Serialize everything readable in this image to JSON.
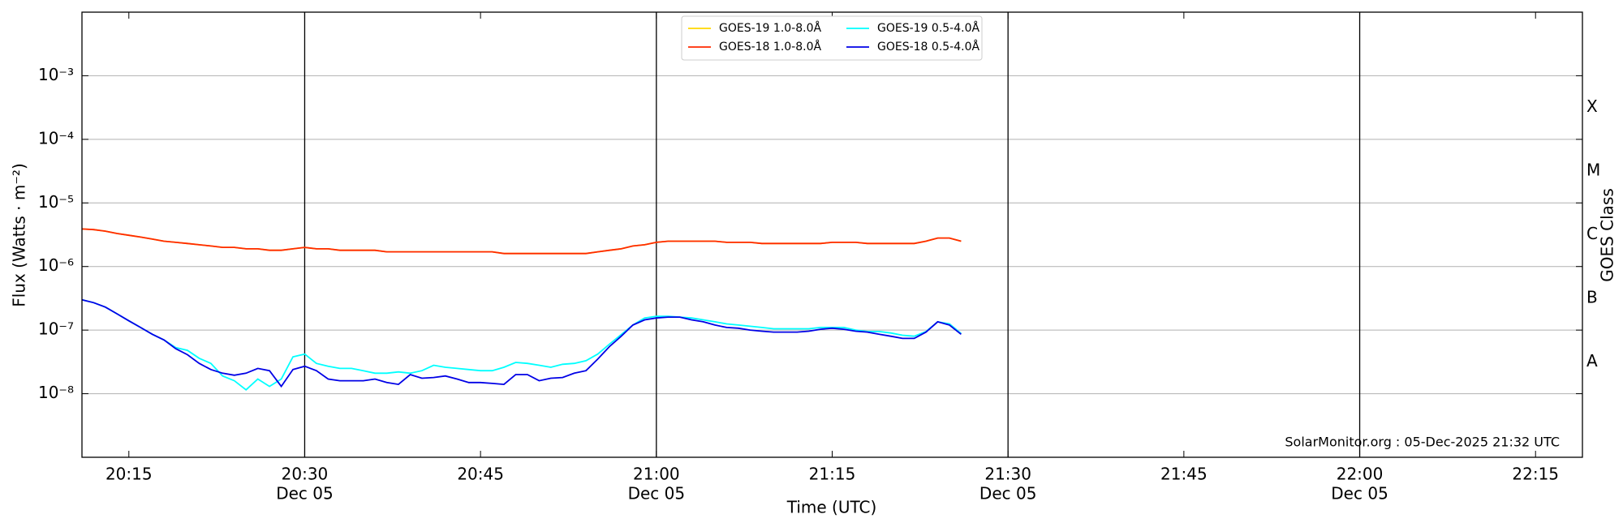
{
  "chart_data": {
    "type": "line",
    "y_label": "Flux (Watts · m⁻²)",
    "x_label": "Time (UTC)",
    "y2_label": "GOES Class",
    "annotation": "SolarMonitor.org : 05-Dec-2025 21:32 UTC",
    "log_y": true,
    "grid": true,
    "xgrid": true,
    "legend": "upper center",
    "xlim": [
      "20:11",
      "22:19"
    ],
    "ylim": [
      1e-09,
      0.01
    ],
    "y2lim": [
      1e-09,
      0.01
    ],
    "xticks": [
      {
        "value": "20:15",
        "label": [
          "20:15"
        ]
      },
      {
        "value": "20:30",
        "label": [
          "20:30",
          "Dec 05"
        ]
      },
      {
        "value": "20:45",
        "label": [
          "20:45"
        ]
      },
      {
        "value": "21:00",
        "label": [
          "21:00",
          "Dec 05"
        ]
      },
      {
        "value": "21:15",
        "label": [
          "21:15"
        ]
      },
      {
        "value": "21:30",
        "label": [
          "21:30",
          "Dec 05"
        ]
      },
      {
        "value": "21:45",
        "label": [
          "21:45"
        ]
      },
      {
        "value": "22:00",
        "label": [
          "22:00",
          "Dec 05"
        ]
      },
      {
        "value": "22:15",
        "label": [
          "22:15"
        ]
      }
    ],
    "yticks": [
      {
        "value": 1e-08,
        "label": "10⁻⁸"
      },
      {
        "value": 1e-07,
        "label": "10⁻⁷"
      },
      {
        "value": 1e-06,
        "label": "10⁻⁶"
      },
      {
        "value": 1e-05,
        "label": "10⁻⁵"
      },
      {
        "value": 0.0001,
        "label": "10⁻⁴"
      },
      {
        "value": 0.001,
        "label": "10⁻³"
      }
    ],
    "y2ticks": [
      {
        "value": 1e-08,
        "label": "A"
      },
      {
        "value": 1e-07,
        "label": "B"
      },
      {
        "value": 1e-06,
        "label": "C"
      },
      {
        "value": 1e-05,
        "label": "M"
      },
      {
        "value": 0.0001,
        "label": "X"
      }
    ],
    "x": [
      "20:11",
      "20:12",
      "20:13",
      "20:14",
      "20:15",
      "20:16",
      "20:17",
      "20:18",
      "20:19",
      "20:20",
      "20:21",
      "20:22",
      "20:23",
      "20:24",
      "20:25",
      "20:26",
      "20:27",
      "20:28",
      "20:29",
      "20:30",
      "20:31",
      "20:32",
      "20:33",
      "20:34",
      "20:35",
      "20:36",
      "20:37",
      "20:38",
      "20:39",
      "20:40",
      "20:41",
      "20:42",
      "20:43",
      "20:44",
      "20:45",
      "20:46",
      "20:47",
      "20:48",
      "20:49",
      "20:50",
      "20:51",
      "20:52",
      "20:53",
      "20:54",
      "20:55",
      "20:56",
      "20:57",
      "20:58",
      "20:59",
      "21:00",
      "21:01",
      "21:02",
      "21:03",
      "21:04",
      "21:05",
      "21:06",
      "21:07",
      "21:08",
      "21:09",
      "21:10",
      "21:11",
      "21:12",
      "21:13",
      "21:14",
      "21:15",
      "21:16",
      "21:17",
      "21:18",
      "21:19",
      "21:20",
      "21:21",
      "21:22",
      "21:23",
      "21:24",
      "21:25",
      "21:26"
    ],
    "series": [
      {
        "name": "GOES-19 1.0-8.0Å",
        "color": "#ffd700",
        "values": [
          3.9e-06,
          3.8e-06,
          3.6e-06,
          3.3e-06,
          3.1e-06,
          2.9e-06,
          2.7e-06,
          2.5e-06,
          2.4e-06,
          2.3e-06,
          2.2e-06,
          2.1e-06,
          2e-06,
          2e-06,
          1.9e-06,
          1.9e-06,
          1.8e-06,
          1.8e-06,
          1.9e-06,
          2e-06,
          1.9e-06,
          1.9e-06,
          1.8e-06,
          1.8e-06,
          1.8e-06,
          1.8e-06,
          1.7e-06,
          1.7e-06,
          1.7e-06,
          1.7e-06,
          1.7e-06,
          1.7e-06,
          1.7e-06,
          1.7e-06,
          1.7e-06,
          1.7e-06,
          1.6e-06,
          1.6e-06,
          1.6e-06,
          1.6e-06,
          1.6e-06,
          1.6e-06,
          1.6e-06,
          1.6e-06,
          1.7e-06,
          1.8e-06,
          1.9e-06,
          2.1e-06,
          2.2e-06,
          2.4e-06,
          2.5e-06,
          2.5e-06,
          2.5e-06,
          2.5e-06,
          2.5e-06,
          2.4e-06,
          2.4e-06,
          2.4e-06,
          2.3e-06,
          2.3e-06,
          2.3e-06,
          2.3e-06,
          2.3e-06,
          2.3e-06,
          2.4e-06,
          2.4e-06,
          2.4e-06,
          2.3e-06,
          2.3e-06,
          2.3e-06,
          2.3e-06,
          2.3e-06,
          2.5e-06,
          2.8e-06,
          2.8e-06,
          2.5e-06
        ]
      },
      {
        "name": "GOES-18 1.0-8.0Å",
        "color": "#ff2a00",
        "values": [
          3.9e-06,
          3.8e-06,
          3.6e-06,
          3.3e-06,
          3.1e-06,
          2.9e-06,
          2.7e-06,
          2.5e-06,
          2.4e-06,
          2.3e-06,
          2.2e-06,
          2.1e-06,
          2e-06,
          2e-06,
          1.9e-06,
          1.9e-06,
          1.8e-06,
          1.8e-06,
          1.9e-06,
          2e-06,
          1.9e-06,
          1.9e-06,
          1.8e-06,
          1.8e-06,
          1.8e-06,
          1.8e-06,
          1.7e-06,
          1.7e-06,
          1.7e-06,
          1.7e-06,
          1.7e-06,
          1.7e-06,
          1.7e-06,
          1.7e-06,
          1.7e-06,
          1.7e-06,
          1.6e-06,
          1.6e-06,
          1.6e-06,
          1.6e-06,
          1.6e-06,
          1.6e-06,
          1.6e-06,
          1.6e-06,
          1.7e-06,
          1.8e-06,
          1.9e-06,
          2.1e-06,
          2.2e-06,
          2.4e-06,
          2.5e-06,
          2.5e-06,
          2.5e-06,
          2.5e-06,
          2.5e-06,
          2.4e-06,
          2.4e-06,
          2.4e-06,
          2.3e-06,
          2.3e-06,
          2.3e-06,
          2.3e-06,
          2.3e-06,
          2.3e-06,
          2.4e-06,
          2.4e-06,
          2.4e-06,
          2.3e-06,
          2.3e-06,
          2.3e-06,
          2.3e-06,
          2.3e-06,
          2.5e-06,
          2.8e-06,
          2.8e-06,
          2.5e-06
        ]
      },
      {
        "name": "GOES-19 0.5-4.0Å",
        "color": "#00ffff",
        "values": [
          3e-07,
          2.7e-07,
          2.3e-07,
          1.8e-07,
          1.4e-07,
          1.1e-07,
          8.6e-08,
          7e-08,
          5.3e-08,
          4.8e-08,
          3.6e-08,
          3e-08,
          1.9e-08,
          1.6e-08,
          1.15e-08,
          1.7e-08,
          1.3e-08,
          1.7e-08,
          3.8e-08,
          4.2e-08,
          3e-08,
          2.7e-08,
          2.5e-08,
          2.5e-08,
          2.3e-08,
          2.1e-08,
          2.1e-08,
          2.2e-08,
          2.1e-08,
          2.3e-08,
          2.8e-08,
          2.6e-08,
          2.5e-08,
          2.4e-08,
          2.3e-08,
          2.3e-08,
          2.6e-08,
          3.1e-08,
          3e-08,
          2.8e-08,
          2.6e-08,
          2.9e-08,
          3e-08,
          3.3e-08,
          4.2e-08,
          6e-08,
          8.5e-08,
          1.2e-07,
          1.55e-07,
          1.65e-07,
          1.65e-07,
          1.6e-07,
          1.55e-07,
          1.45e-07,
          1.35e-07,
          1.25e-07,
          1.2e-07,
          1.15e-07,
          1.1e-07,
          1.05e-07,
          1.05e-07,
          1.05e-07,
          1.05e-07,
          1.1e-07,
          1.1e-07,
          1.1e-07,
          1e-07,
          9.5e-08,
          9.5e-08,
          9e-08,
          8.3e-08,
          8e-08,
          9.5e-08,
          1.35e-07,
          1.25e-07,
          8.8e-08
        ]
      },
      {
        "name": "GOES-18 0.5-4.0Å",
        "color": "#0000e6",
        "values": [
          3e-07,
          2.7e-07,
          2.3e-07,
          1.8e-07,
          1.4e-07,
          1.1e-07,
          8.6e-08,
          7e-08,
          5.1e-08,
          4.1e-08,
          3e-08,
          2.4e-08,
          2.1e-08,
          1.95e-08,
          2.1e-08,
          2.5e-08,
          2.3e-08,
          1.3e-08,
          2.4e-08,
          2.7e-08,
          2.3e-08,
          1.7e-08,
          1.6e-08,
          1.6e-08,
          1.6e-08,
          1.7e-08,
          1.5e-08,
          1.4e-08,
          2e-08,
          1.75e-08,
          1.8e-08,
          1.9e-08,
          1.7e-08,
          1.5e-08,
          1.5e-08,
          1.45e-08,
          1.4e-08,
          2e-08,
          2e-08,
          1.6e-08,
          1.75e-08,
          1.8e-08,
          2.1e-08,
          2.3e-08,
          3.5e-08,
          5.5e-08,
          8e-08,
          1.2e-07,
          1.45e-07,
          1.55e-07,
          1.6e-07,
          1.6e-07,
          1.45e-07,
          1.35e-07,
          1.2e-07,
          1.1e-07,
          1.07e-07,
          1e-07,
          9.6e-08,
          9.3e-08,
          9.3e-08,
          9.3e-08,
          9.6e-08,
          1.03e-07,
          1.07e-07,
          1.03e-07,
          9.6e-08,
          9.3e-08,
          8.6e-08,
          8e-08,
          7.4e-08,
          7.4e-08,
          9.3e-08,
          1.35e-07,
          1.2e-07,
          8.6e-08
        ]
      }
    ]
  }
}
